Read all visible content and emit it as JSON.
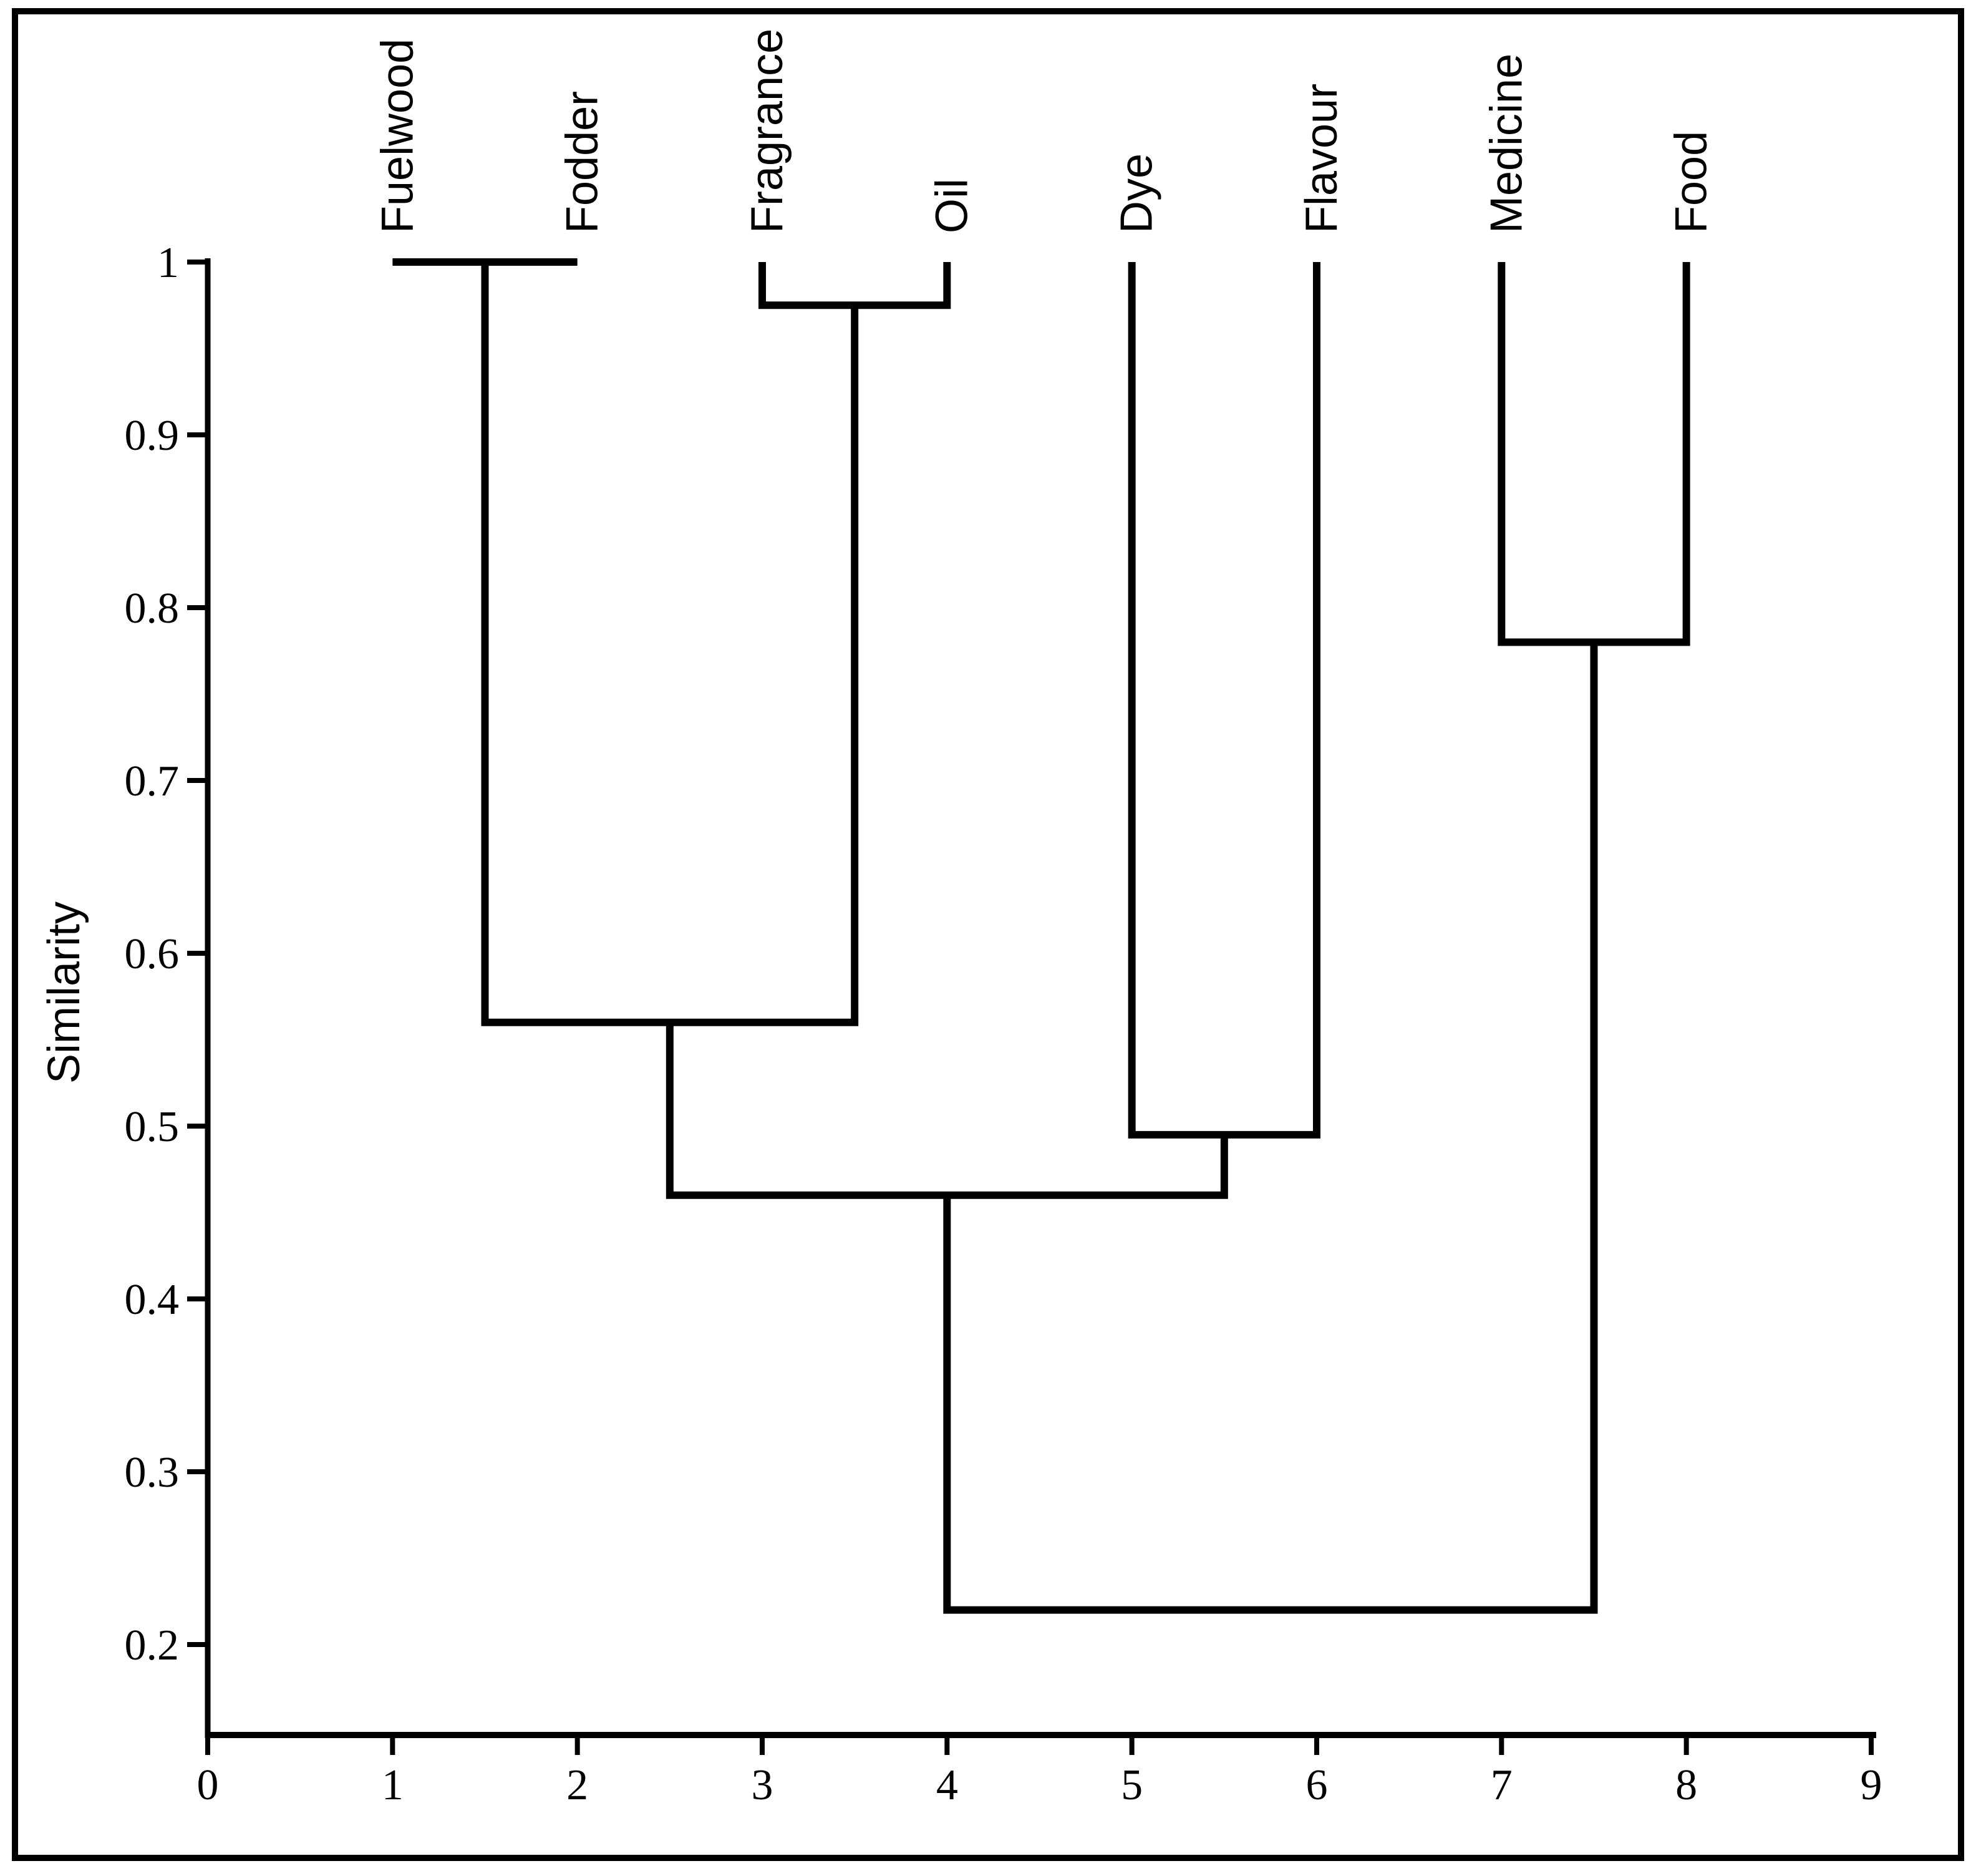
{
  "page": {
    "background": "#ffffff"
  },
  "figure": {
    "frame_color": "#000000",
    "line_color": "#000000",
    "text_color": "#000000"
  },
  "chart_data": {
    "type": "dendrogram",
    "title": "",
    "orientation": "leaves-on-top",
    "ylabel": "Similarity",
    "leaves": [
      "Fuelwood",
      "Fodder",
      "Fragrance",
      "Oil",
      "Dye",
      "Flavour",
      "Medicine",
      "Food"
    ],
    "leaf_x_positions": [
      1,
      2,
      3,
      4,
      5,
      6,
      7,
      8
    ],
    "leaf_similarity_start": 1.0,
    "merges": [
      {
        "cluster": "C1",
        "left": "Fuelwood",
        "right": "Fodder",
        "similarity": 1.0
      },
      {
        "cluster": "C2",
        "left": "Fragrance",
        "right": "Oil",
        "similarity": 0.975
      },
      {
        "cluster": "C3",
        "left": "C1",
        "right": "C2",
        "similarity": 0.56
      },
      {
        "cluster": "C4",
        "left": "Dye",
        "right": "Flavour",
        "similarity": 0.495
      },
      {
        "cluster": "C5",
        "left": "C3",
        "right": "C4",
        "similarity": 0.46
      },
      {
        "cluster": "C6",
        "left": "Medicine",
        "right": "Food",
        "similarity": 0.78
      },
      {
        "cluster": "C7",
        "left": "C5",
        "right": "C6",
        "similarity": 0.22
      }
    ],
    "y_axis": {
      "label": "Similarity",
      "tick_labels": [
        "1",
        "0.9",
        "0.8",
        "0.7",
        "0.6",
        "0.5",
        "0.4",
        "0.3",
        "0.2"
      ],
      "tick_values": [
        1.0,
        0.9,
        0.8,
        0.7,
        0.6,
        0.5,
        0.4,
        0.3,
        0.2
      ],
      "grid": false
    },
    "x_axis": {
      "label": "",
      "tick_labels": [
        "0",
        "1",
        "2",
        "3",
        "4",
        "5",
        "6",
        "7",
        "8",
        "9"
      ],
      "tick_values": [
        0,
        1,
        2,
        3,
        4,
        5,
        6,
        7,
        8,
        9
      ],
      "range": [
        0,
        9
      ],
      "grid": false
    }
  }
}
